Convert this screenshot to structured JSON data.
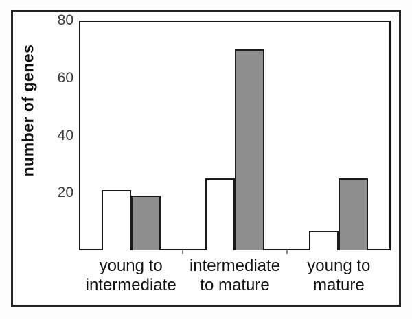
{
  "chart_data": {
    "type": "bar",
    "title": "",
    "ylabel": "number of genes",
    "xlabel": "",
    "ylim": [
      0,
      80
    ],
    "yticks": [
      20,
      40,
      60,
      80
    ],
    "grid": "horizontal gridlines at 20, 40, 60; top frame line at 80",
    "legend_position": "none",
    "categories": [
      "young to intermediate",
      "intermediate to mature",
      "young to mature"
    ],
    "category_label_lines": [
      [
        "young to",
        "intermediate"
      ],
      [
        "intermediate",
        "to mature"
      ],
      [
        "young to",
        "mature"
      ]
    ],
    "series": [
      {
        "name": "series-1-white",
        "fill": "#ffffff",
        "values": [
          21,
          25,
          7
        ]
      },
      {
        "name": "series-2-gray",
        "fill": "#8e8e8e",
        "values": [
          19,
          70,
          25
        ]
      }
    ],
    "colors": {
      "bar_outline": "#1a1a1a",
      "frame": "#1a1a1a",
      "outer_border": "#242424",
      "tick_text": "#3a3a3a",
      "category_text": "#111111",
      "gridline_20": "#6f6f6f",
      "gridline_40": "#9a9a9a",
      "gridline_60": "#4a4a4a"
    }
  }
}
